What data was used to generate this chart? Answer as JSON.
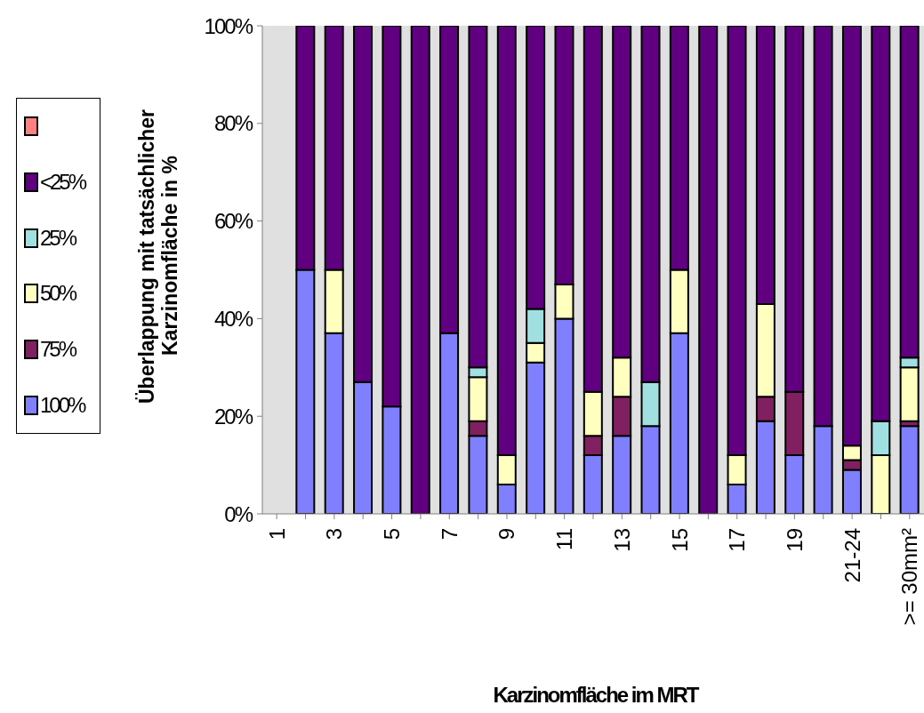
{
  "chart_data": {
    "type": "bar",
    "stacked": true,
    "xlabel": "Karzinomfläche im MRT",
    "ylabel": "Überlappung mit tatsächlicher Karzinomfläche in %",
    "categories": [
      "1",
      null,
      "3",
      null,
      "5",
      null,
      "7",
      null,
      "9",
      null,
      "11",
      null,
      "13",
      null,
      "15",
      null,
      "17",
      null,
      "19",
      null,
      "21-24",
      null,
      ">= 30mm²"
    ],
    "series": [
      {
        "name": "100%",
        "color": "#8080ff",
        "values": [
          0,
          50,
          37,
          27,
          22,
          0,
          37,
          16,
          6,
          31,
          40,
          12,
          16,
          18,
          37,
          0,
          6,
          19,
          12,
          18,
          9,
          0,
          18
        ]
      },
      {
        "name": "75%",
        "color": "#802060",
        "values": [
          0,
          0,
          0,
          0,
          0,
          0,
          0,
          3,
          0,
          0,
          0,
          4,
          8,
          0,
          0,
          0,
          0,
          5,
          13,
          0,
          2,
          0,
          1
        ]
      },
      {
        "name": "50%",
        "color": "#ffffc0",
        "values": [
          0,
          0,
          13,
          0,
          0,
          0,
          0,
          9,
          6,
          4,
          7,
          9,
          8,
          0,
          13,
          0,
          6,
          19,
          0,
          0,
          3,
          12,
          11
        ]
      },
      {
        "name": "25%",
        "color": "#a0e0e0",
        "values": [
          0,
          0,
          0,
          0,
          0,
          0,
          0,
          2,
          0,
          7,
          0,
          0,
          0,
          9,
          0,
          0,
          0,
          0,
          0,
          0,
          0,
          7,
          2
        ]
      },
      {
        "name": "<25%",
        "color": "#600080",
        "values": [
          0,
          50,
          50,
          73,
          78,
          100,
          63,
          70,
          88,
          58,
          53,
          75,
          68,
          73,
          50,
          100,
          88,
          57,
          75,
          82,
          86,
          81,
          68
        ]
      },
      {
        "color": "#ff8080",
        "values": [
          0,
          0,
          0,
          0,
          0,
          0,
          0,
          0,
          0,
          0,
          0,
          0,
          0,
          0,
          0,
          0,
          0,
          0,
          0,
          0,
          0,
          0,
          0
        ]
      }
    ],
    "ylim": [
      0,
      100
    ],
    "yticks": [
      {
        "value": 0,
        "label": "0%"
      },
      {
        "value": 20,
        "label": "20%"
      },
      {
        "value": 40,
        "label": "40%"
      },
      {
        "value": 60,
        "label": "60%"
      },
      {
        "value": 80,
        "label": "80%"
      },
      {
        "value": 100,
        "label": "100%"
      }
    ],
    "legend": "left"
  }
}
